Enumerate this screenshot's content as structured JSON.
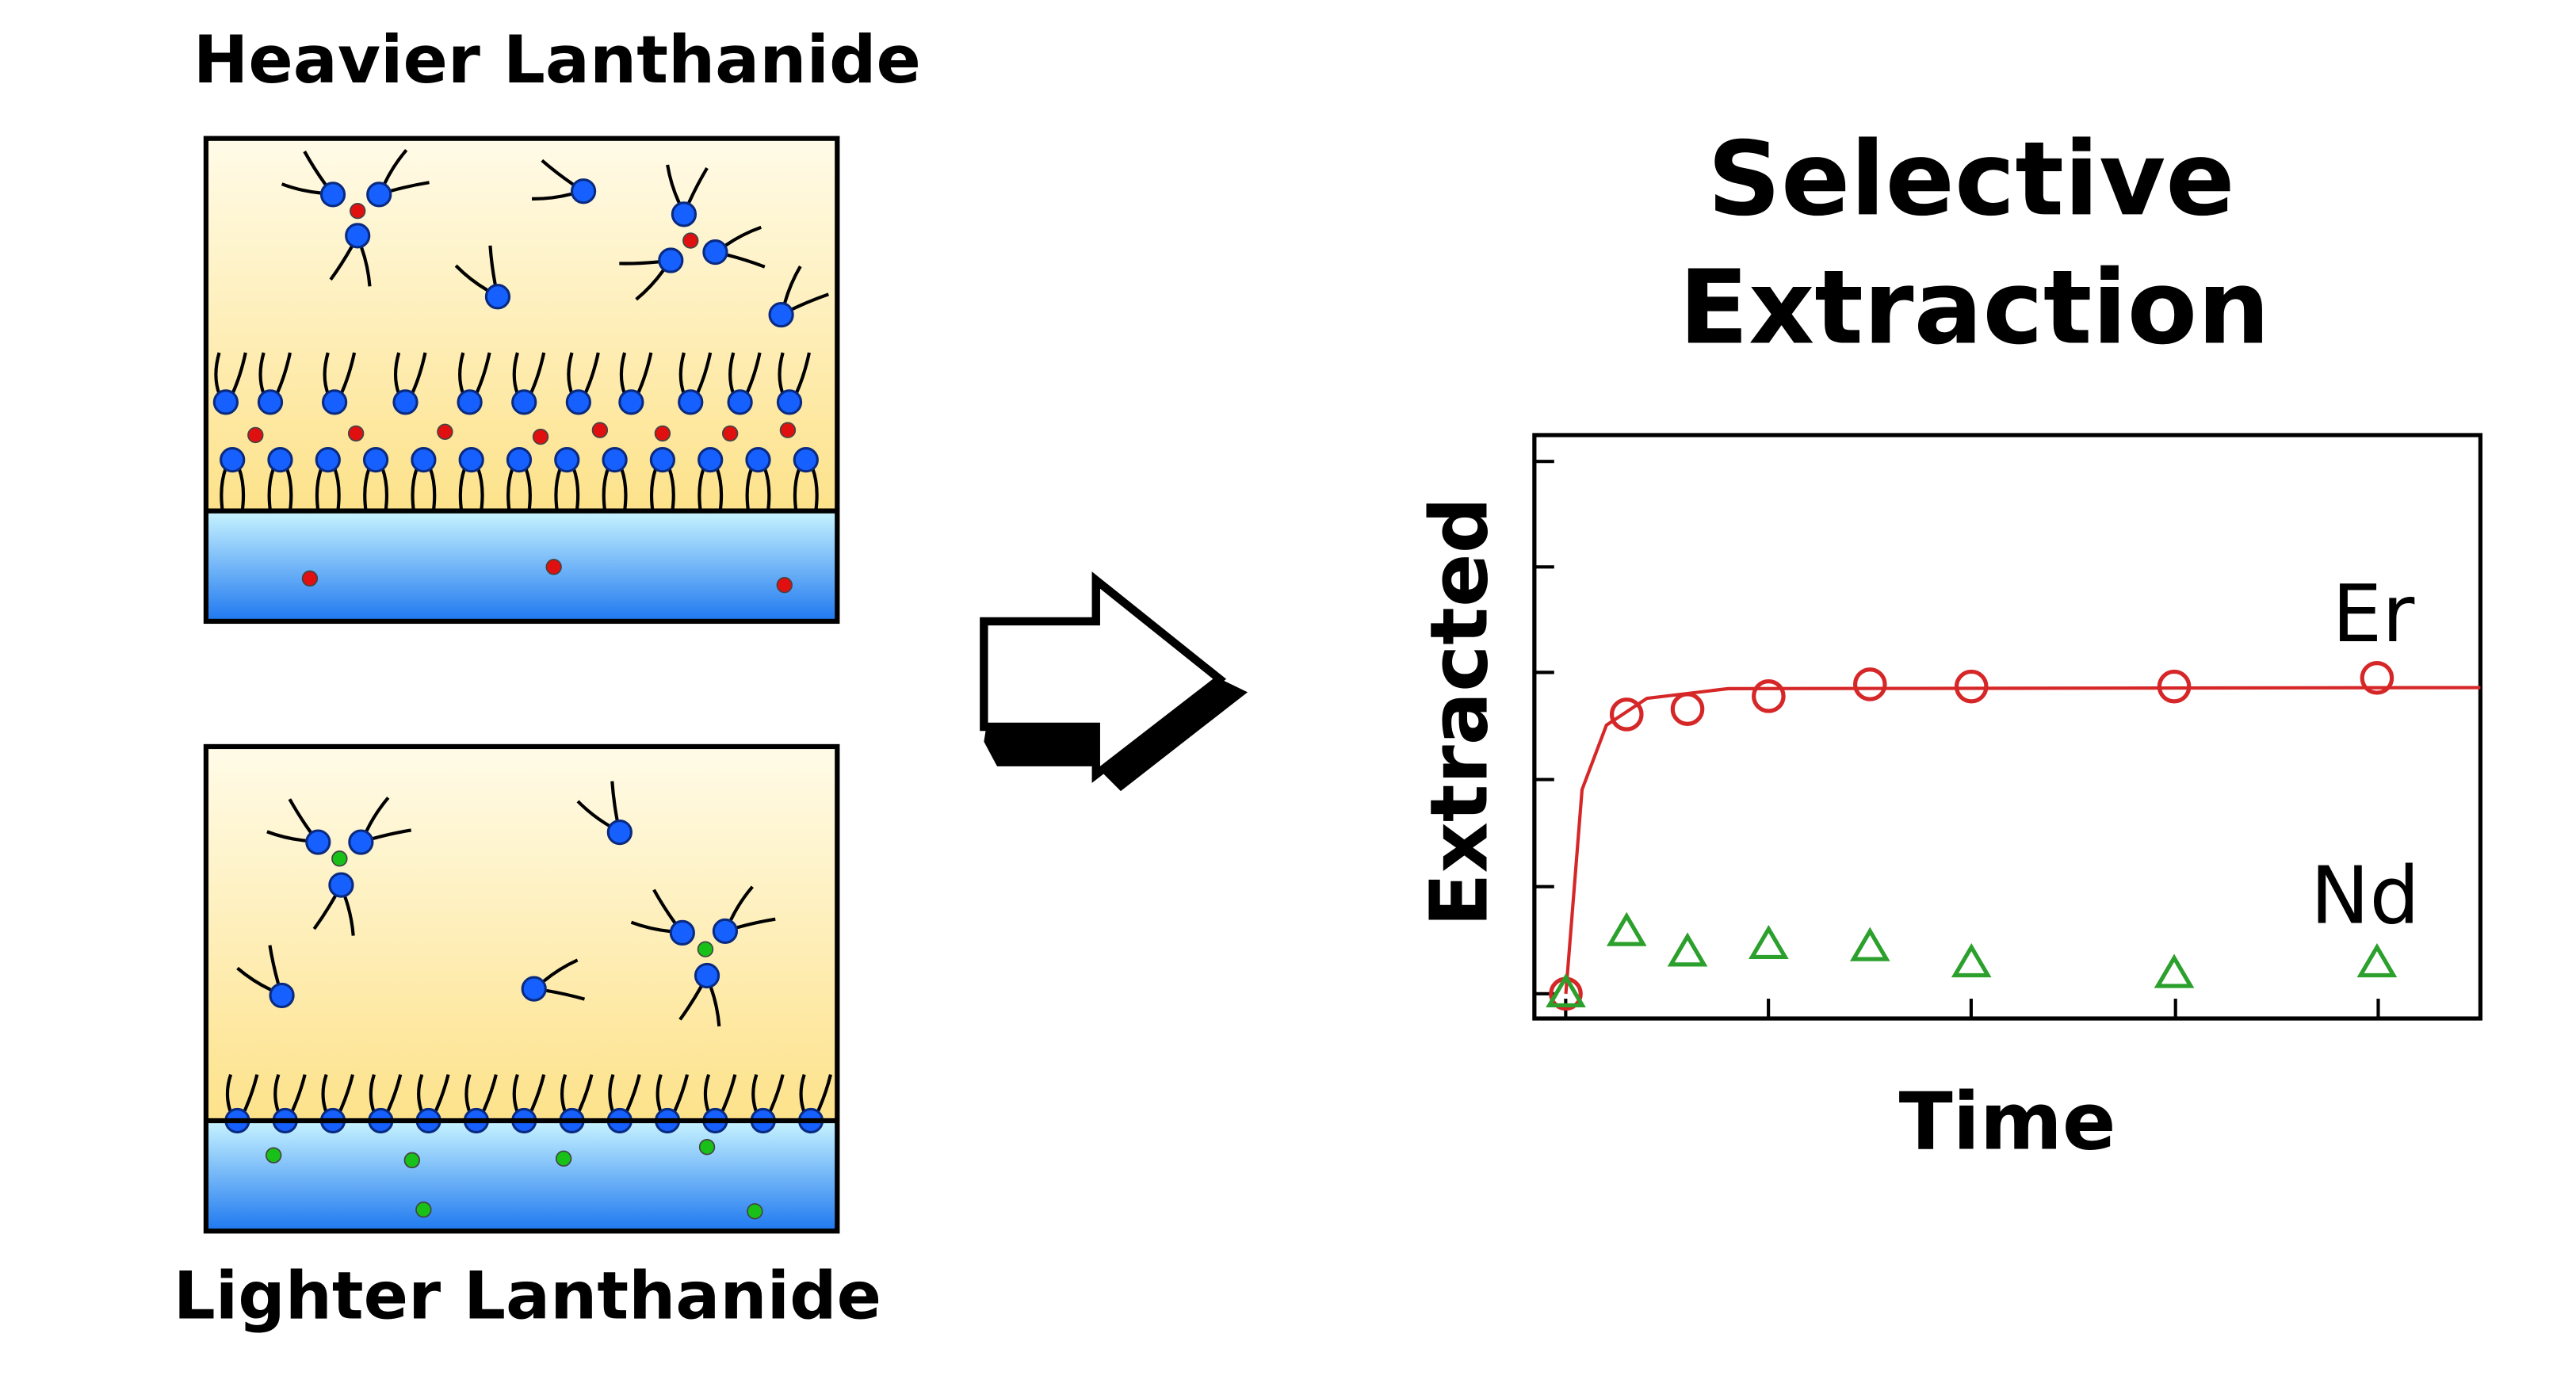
{
  "labels": {
    "top_box": "Heavier Lanthanide",
    "bottom_box": "Lighter Lanthanide",
    "title": [
      "Selective",
      "Extraction"
    ]
  },
  "chart_data": {
    "type": "scatter",
    "x_label": "Time",
    "y_label": "Extracted",
    "x": [
      0,
      0.3,
      0.6,
      1,
      1.5,
      2,
      3,
      4
    ],
    "series": [
      {
        "name": "Er",
        "color": "#d62728",
        "marker": "circle",
        "values": [
          0,
          2.6,
          2.65,
          2.77,
          2.88,
          2.86,
          2.86,
          2.94
        ],
        "fit_x": [
          0,
          0.08,
          0.2,
          0.4,
          0.8,
          4.51
        ],
        "fit_values": [
          0,
          1.9,
          2.5,
          2.75,
          2.84,
          2.85
        ]
      },
      {
        "name": "Nd",
        "color": "#2ca02c",
        "marker": "triangle",
        "values": [
          0,
          0.57,
          0.38,
          0.45,
          0.43,
          0.28,
          0.18,
          0.28
        ]
      }
    ],
    "xlim": [
      -0.155,
      4.51
    ],
    "ylim": [
      -0.23,
      5.2
    ]
  }
}
